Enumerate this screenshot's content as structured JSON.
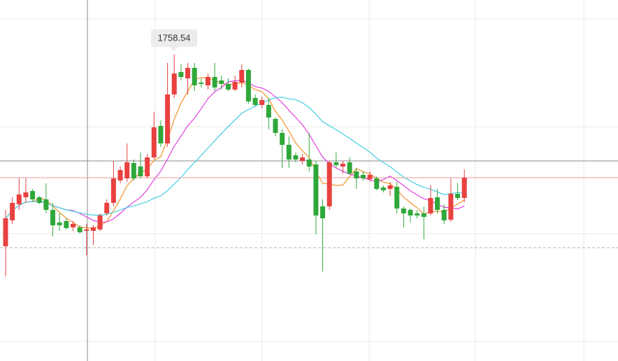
{
  "chart_data": {
    "type": "candlestick",
    "open": [
      1621.5,
      1640,
      1651.5,
      1656.5,
      1661,
      1656.5,
      1655,
      1647.5,
      1638.5,
      1639.5,
      1635,
      1635,
      1632.5,
      1632.5,
      1633.5,
      1645,
      1652.5,
      1668.5,
      1670,
      1681,
      1678.5,
      1671.5,
      1685,
      1707.5,
      1695,
      1730,
      1746,
      1741.5,
      1749,
      1738.5,
      1736.5,
      1742.5,
      1740,
      1737.5,
      1733.5,
      1738.5,
      1747.5,
      1727.5,
      1722.5,
      1722.5,
      1712.5,
      1702.5,
      1694,
      1686.5,
      1682.5,
      1683.5,
      1680,
      1650,
      1650,
      1681.5,
      1678.5,
      1681.5,
      1675,
      1672.5,
      1669.5,
      1670,
      1663.5,
      1662.5,
      1664,
      1648.5,
      1647.5,
      1645,
      1645,
      1645,
      1656.5,
      1647.5,
      1640.5,
      1659,
      1656
    ],
    "high": [
      1647.5,
      1656.5,
      1670,
      1670,
      1662.5,
      1657.5,
      1666.5,
      1652.5,
      1645,
      1641.5,
      1639.5,
      1636.5,
      1637.5,
      1636.5,
      1645,
      1655,
      1682.5,
      1678.5,
      1695,
      1683.5,
      1688.5,
      1687.5,
      1717.5,
      1711.5,
      1752.5,
      1758.54,
      1751.5,
      1752.5,
      1752.5,
      1741.5,
      1745,
      1752.5,
      1743.5,
      1741.5,
      1743.5,
      1751.5,
      1748.5,
      1730,
      1728.5,
      1727.5,
      1713.5,
      1705,
      1700,
      1688.5,
      1687.5,
      1702.5,
      1682.5,
      1655,
      1682.5,
      1688.5,
      1682.5,
      1685,
      1677.5,
      1675,
      1675,
      1671.5,
      1665,
      1667.5,
      1667.5,
      1650,
      1648.5,
      1647.5,
      1650,
      1665,
      1662.5,
      1651.5,
      1670,
      1666.5,
      1676.5
    ],
    "low": [
      1600,
      1637.5,
      1647.5,
      1652.5,
      1653.5,
      1651.5,
      1645,
      1628.5,
      1632.5,
      1633.5,
      1632.5,
      1630.5,
      1615,
      1622.5,
      1632.5,
      1643.5,
      1650,
      1666.5,
      1667.5,
      1668.5,
      1670,
      1670,
      1683.5,
      1692.5,
      1692.5,
      1727.5,
      1740,
      1730,
      1732.5,
      1735,
      1733.5,
      1732.5,
      1733.5,
      1732.5,
      1732.5,
      1735,
      1723.5,
      1721.5,
      1720,
      1705,
      1700,
      1677.5,
      1677.5,
      1681.5,
      1680,
      1675,
      1630,
      1603.5,
      1647.5,
      1677.5,
      1673.5,
      1672.5,
      1662.5,
      1668.5,
      1667.5,
      1661.5,
      1660,
      1657.5,
      1645,
      1635,
      1638.5,
      1641.5,
      1626.5,
      1643.5,
      1645,
      1637.5,
      1639,
      1654.5,
      1653
    ],
    "close": [
      1641.5,
      1652.5,
      1658.5,
      1660,
      1655,
      1652.5,
      1647.5,
      1636.5,
      1636.5,
      1634.5,
      1637.5,
      1631.5,
      1633.5,
      1635,
      1643.5,
      1652.5,
      1670,
      1676,
      1681.5,
      1670,
      1671.5,
      1685,
      1706.5,
      1695,
      1730,
      1745,
      1742.5,
      1749,
      1736.5,
      1737.5,
      1742.5,
      1735,
      1737.5,
      1733.5,
      1739,
      1747.5,
      1725,
      1722.5,
      1726,
      1713.5,
      1702.5,
      1694,
      1683.5,
      1683.5,
      1685,
      1678.5,
      1643.5,
      1641.5,
      1681.5,
      1679.5,
      1680.5,
      1673.5,
      1670,
      1670,
      1672.5,
      1662.5,
      1661.5,
      1665,
      1648.5,
      1645,
      1643.5,
      1643.5,
      1642.5,
      1656,
      1647.5,
      1640,
      1659,
      1656,
      1670.5
    ],
    "up_color": "#e8413f",
    "down_color": "#2fa83a",
    "ylim": [
      1539.5,
      1797.5
    ],
    "ma_lines": [
      {
        "window": 5,
        "color": "#f5922a"
      },
      {
        "window": 10,
        "color": "#e03fe0"
      },
      {
        "window": 20,
        "color": "#45cfe0"
      }
    ],
    "price_line_color": "#f29a9a"
  }
}
